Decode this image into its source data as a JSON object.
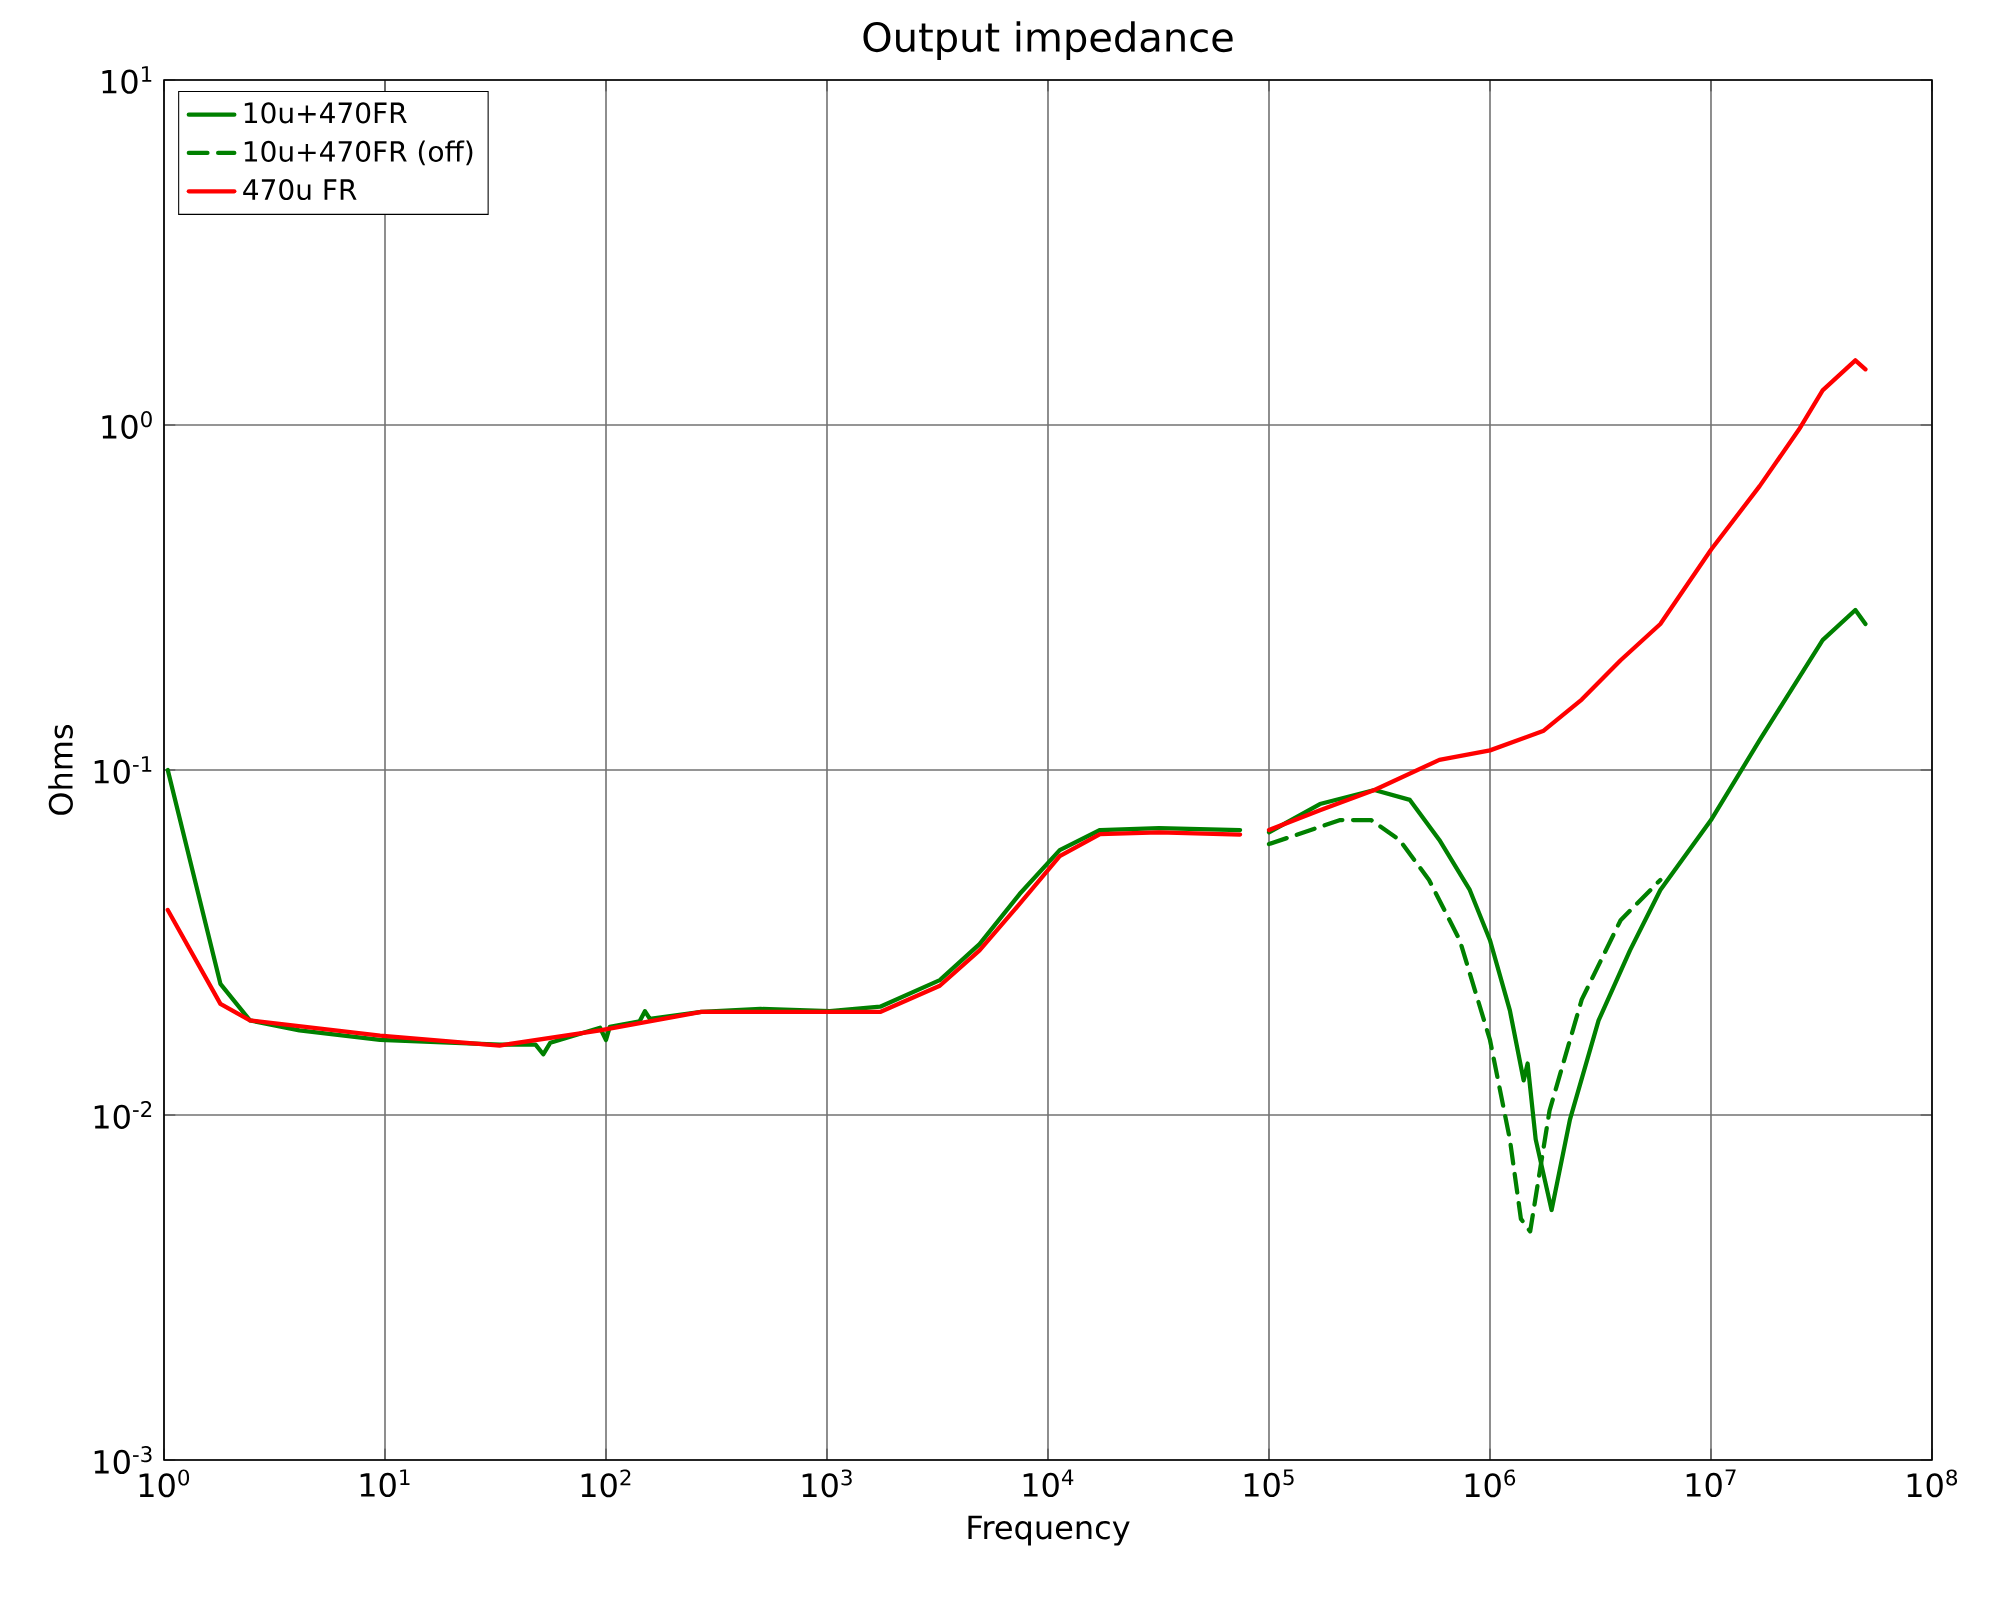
{
  "chart_data": {
    "type": "line",
    "title": "Output impedance",
    "xlabel": "Frequency",
    "ylabel": "Ohms",
    "log": "xy",
    "grid": true,
    "legend": "top left",
    "xlim": [
      1,
      100000000
    ],
    "ylim": [
      0.001,
      10
    ],
    "xticks": [
      {
        "value": 1,
        "label": "10$^{0}$"
      },
      {
        "value": 10,
        "label": "10$^{1}$"
      },
      {
        "value": 100,
        "label": "10$^{2}$"
      },
      {
        "value": 1000,
        "label": "10$^{3}$"
      },
      {
        "value": 10000,
        "label": "10$^{4}$"
      },
      {
        "value": 100000,
        "label": "10$^{5}$"
      },
      {
        "value": 1000000,
        "label": "10$^{6}$"
      },
      {
        "value": 10000000,
        "label": "10$^{7}$"
      },
      {
        "value": 100000000,
        "label": "10$^{8}$"
      }
    ],
    "yticks": [
      {
        "value": 0.001,
        "label": "10$^{-3}$"
      },
      {
        "value": 0.01,
        "label": "10$^{-2}$"
      },
      {
        "value": 0.1,
        "label": "10$^{-1}$"
      },
      {
        "value": 1,
        "label": "10$^{0}$"
      },
      {
        "value": 10,
        "label": "10$^{1}$"
      }
    ],
    "series": [
      {
        "name": "10u+470FR",
        "color": "#008000",
        "line_style": "solid",
        "x": [
          1.04,
          1.8,
          2.45,
          4.1,
          9.5,
          33,
          48,
          52,
          56,
          94,
          100,
          104,
          142,
          150,
          158,
          270,
          500,
          1030,
          1740,
          3240,
          4900,
          7440,
          11300,
          17200,
          31800,
          74000,
          85000,
          100000,
          170000,
          300000,
          434000,
          590000,
          810000,
          1000000,
          1230000,
          1420000,
          1480000,
          1610000,
          1900000,
          2300000,
          3100000,
          4300000,
          5900000,
          10000000,
          16600000,
          32000000,
          45000000,
          50000000
        ],
        "values": [
          0.1,
          0.024,
          0.0188,
          0.0176,
          0.0165,
          0.016,
          0.016,
          0.015,
          0.0162,
          0.0179,
          0.0165,
          0.018,
          0.0187,
          0.02,
          0.019,
          0.0199,
          0.0203,
          0.02,
          0.0206,
          0.0246,
          0.0313,
          0.0437,
          0.0586,
          0.067,
          0.0678,
          0.067,
          null,
          0.066,
          0.0797,
          0.0875,
          0.0819,
          0.0627,
          0.0449,
          0.0321,
          0.0201,
          0.0126,
          0.0141,
          0.0085,
          0.0053,
          0.0097,
          0.0188,
          0.03,
          0.0449,
          0.0716,
          0.122,
          0.238,
          0.291,
          0.265
        ]
      },
      {
        "name": "10u+470FR (off)",
        "color": "#008000",
        "line_style": "dashed",
        "x": [
          100000,
          210000,
          290000,
          390000,
          530000,
          730000,
          1000000,
          1230000,
          1380000,
          1520000,
          1860000,
          2600000,
          3900000,
          5900000
        ],
        "values": [
          0.061,
          0.0716,
          0.0716,
          0.0627,
          0.048,
          0.0321,
          0.0165,
          0.0085,
          0.005,
          0.0046,
          0.0103,
          0.0216,
          0.0367,
          0.048
        ]
      },
      {
        "name": "470u FR",
        "color": "#ff0000",
        "line_style": "solid",
        "x": [
          1.04,
          1.8,
          2.45,
          9.5,
          33,
          94,
          270,
          1030,
          1740,
          3240,
          4900,
          7440,
          11300,
          17200,
          31800,
          74000,
          85000,
          100000,
          170000,
          300000,
          590000,
          1000000,
          1750000,
          2600000,
          3900000,
          5900000,
          10000000,
          16600000,
          25000000,
          32000000,
          45000000,
          50000000
        ],
        "values": [
          0.0393,
          0.021,
          0.0188,
          0.017,
          0.0159,
          0.0176,
          0.0199,
          0.0199,
          0.0199,
          0.0237,
          0.03,
          0.0409,
          0.0563,
          0.0652,
          0.066,
          0.065,
          null,
          0.067,
          0.0765,
          0.0875,
          0.107,
          0.114,
          0.13,
          0.16,
          0.208,
          0.265,
          0.435,
          0.665,
          0.97,
          1.26,
          1.54,
          1.45
        ]
      }
    ]
  }
}
